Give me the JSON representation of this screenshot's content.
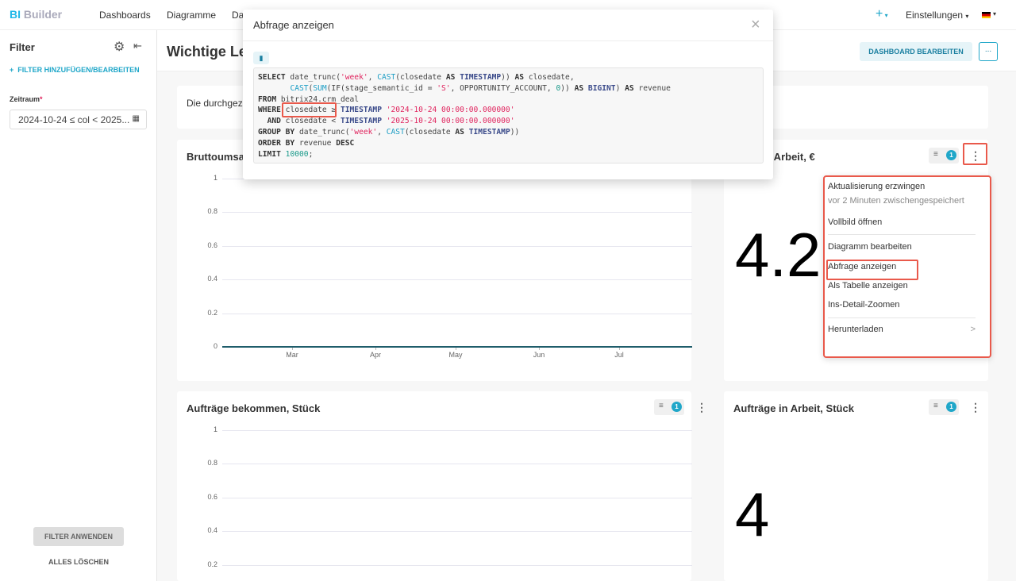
{
  "app": {
    "logo_bi": "BI",
    "logo_builder": "Builder",
    "nav": [
      "Dashboards",
      "Diagramme",
      "Da"
    ],
    "plus": "+",
    "settings": "Einstellungen",
    "flag": "de-flag-icon"
  },
  "sidebar": {
    "title": "Filter",
    "add_filter": "FILTER HINZUFÜGEN/BEARBEITEN",
    "field_label": "Zeitraum",
    "required": "*",
    "field_value": "2024-10-24 ≤ col < 2025...",
    "apply": "FILTER ANWENDEN",
    "clear": "ALLES LÖSCHEN"
  },
  "dashboard": {
    "title": "Wichtige Lei",
    "edit": "DASHBOARD BEARBEITEN",
    "more": "...",
    "note": "Die durchgezo"
  },
  "modal": {
    "title": "Abfrage anzeigen",
    "close": "×"
  },
  "menu": {
    "items": [
      "Aktualisierung erzwingen",
      "vor 2 Minuten zwischengespeichert",
      "Vollbild öffnen",
      "Diagramm bearbeiten",
      "Abfrage anzeigen",
      "Als Tabelle anzeigen",
      "Ins-Detail-Zoomen",
      "Herunterladen"
    ]
  },
  "cards": {
    "c1": {
      "title": "Bruttoumsat"
    },
    "c2": {
      "title": "in Arbeit, €",
      "value": "4.2",
      "filter_count": "1"
    },
    "c3": {
      "title": "Aufträge bekommen, Stück",
      "filter_count": "1"
    },
    "c4": {
      "title": "Aufträge in Arbeit, Stück",
      "value": "4",
      "filter_count": "1"
    }
  },
  "chart_data": [
    {
      "type": "line",
      "title": "Bruttoumsat",
      "yticks": [
        "1",
        "0.8",
        "0.6",
        "0.4",
        "0.2",
        "0"
      ],
      "xticks": [
        "Mar",
        "Apr",
        "May",
        "Jun",
        "Jul"
      ],
      "ylim": [
        0,
        1
      ],
      "values": [
        0,
        0,
        0,
        0,
        0
      ]
    },
    {
      "type": "line",
      "title": "Aufträge bekommen, Stück",
      "yticks": [
        "1",
        "0.8",
        "0.6",
        "0.4",
        "0.2"
      ],
      "ylim": [
        0,
        1
      ]
    }
  ]
}
